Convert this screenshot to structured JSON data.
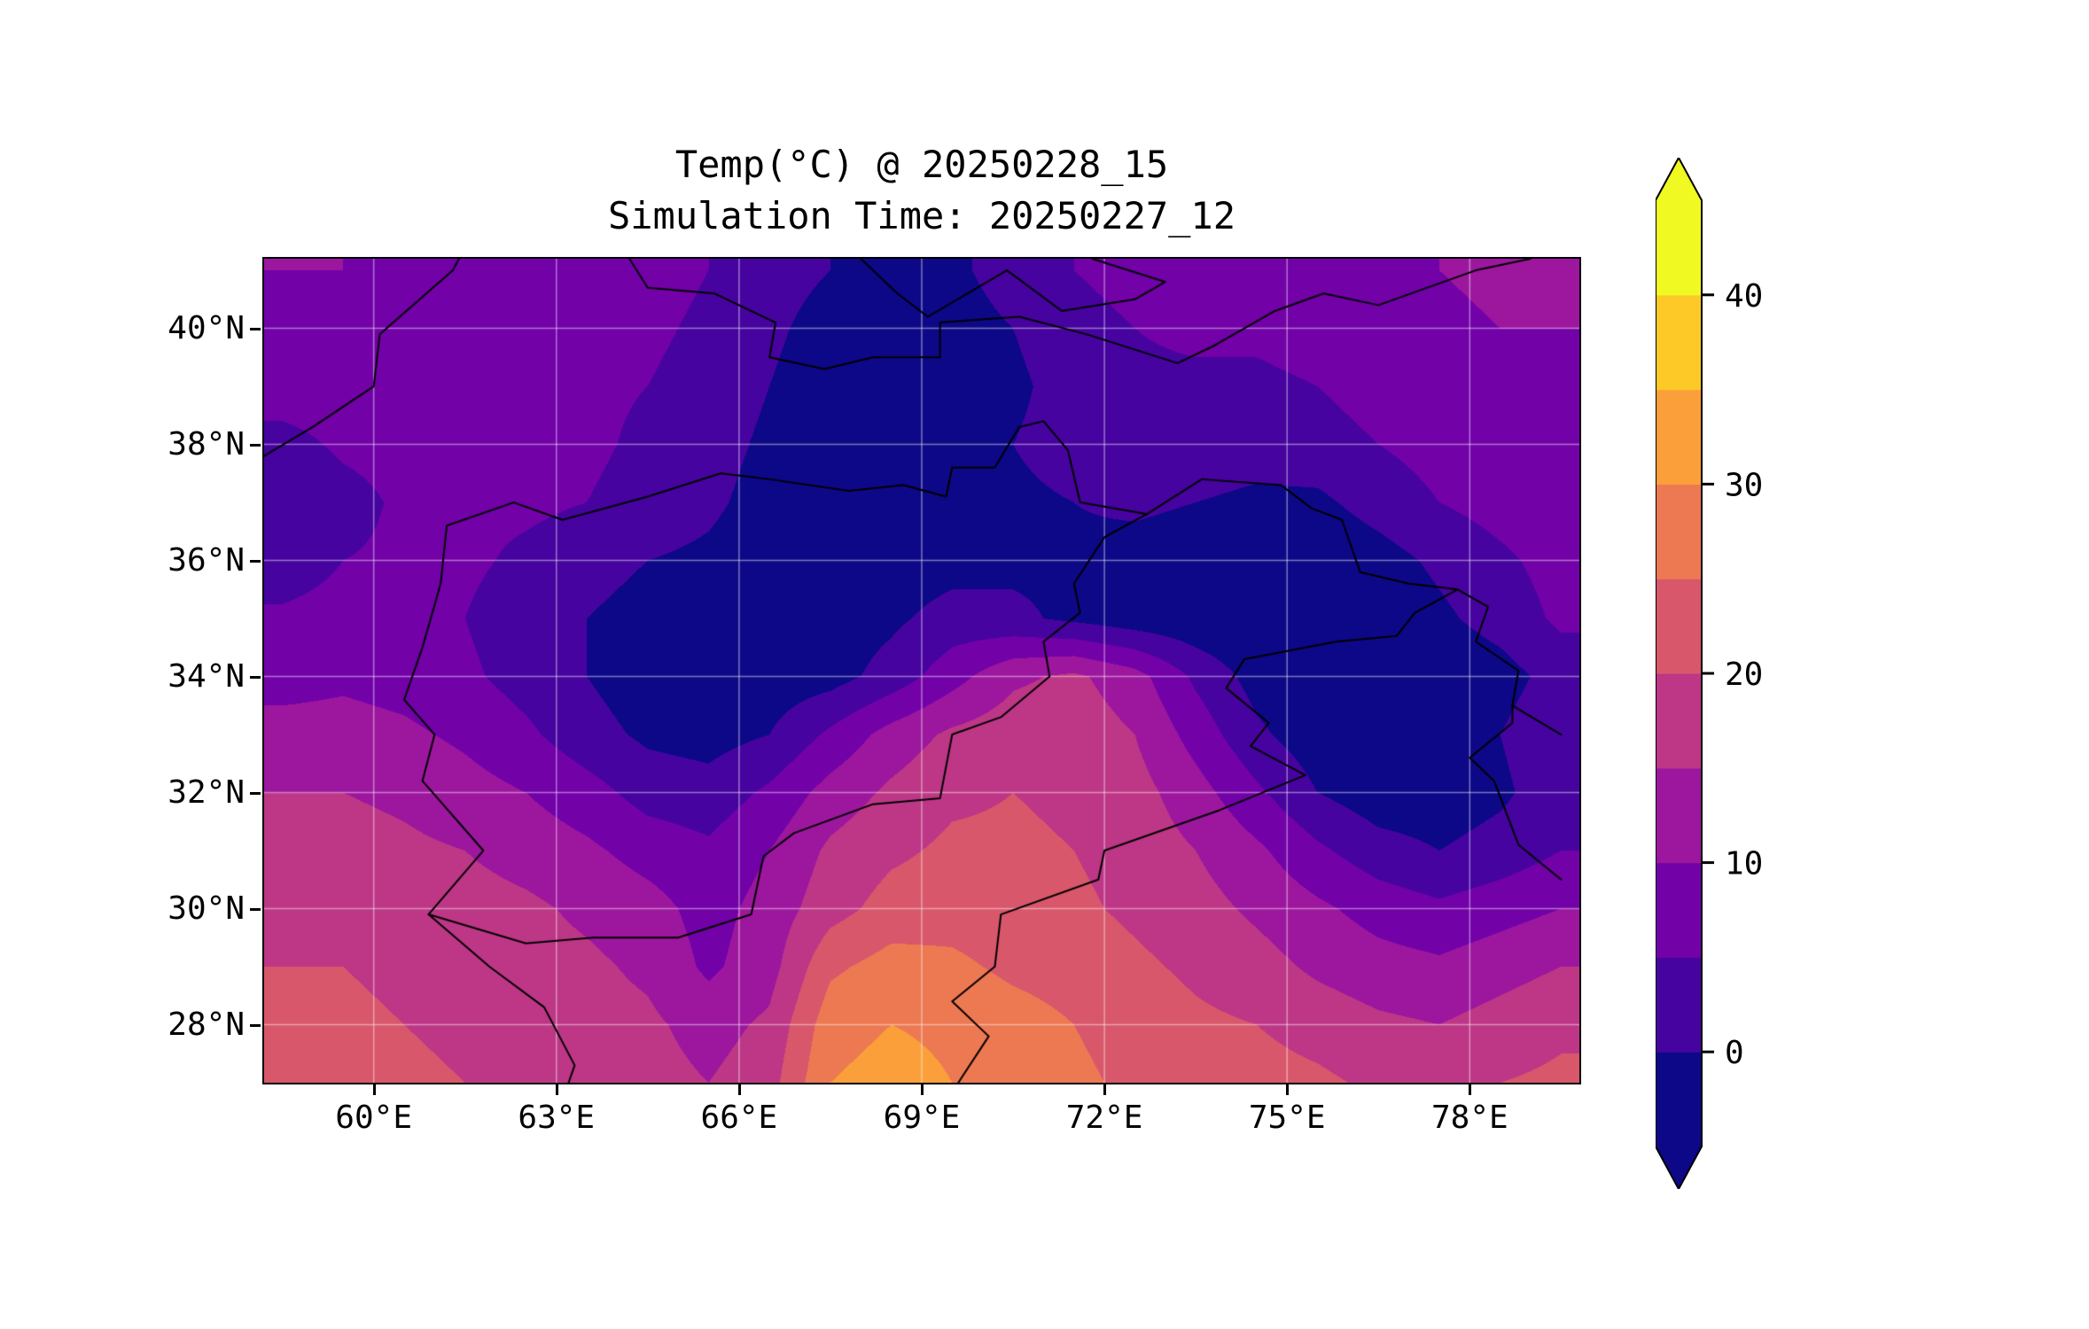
{
  "figure": {
    "background": "#ffffff"
  },
  "chart_data": {
    "type": "heatmap",
    "title": "Temp(°C) @ 20250228_15",
    "subtitle": "Simulation Time: 20250227_12",
    "xlabel": "",
    "ylabel": "",
    "lon_range": [
      58.2,
      79.8
    ],
    "lat_range": [
      27.0,
      41.2
    ],
    "x_ticks": [
      "60°E",
      "63°E",
      "66°E",
      "69°E",
      "72°E",
      "75°E",
      "78°E"
    ],
    "x_tick_values": [
      60,
      63,
      66,
      69,
      72,
      75,
      78
    ],
    "y_ticks": [
      "40°N",
      "38°N",
      "36°N",
      "34°N",
      "32°N",
      "30°N",
      "28°N"
    ],
    "y_tick_values": [
      40,
      38,
      36,
      34,
      32,
      30,
      28
    ],
    "grid_lines": {
      "color": "#ffffff",
      "alpha": 0.45,
      "width": 1.5
    },
    "border_style": {
      "color": "#000000",
      "width": 2
    },
    "colorbar": {
      "ticks": [
        40,
        30,
        20,
        10,
        0
      ],
      "tick_labels": [
        "40",
        "30",
        "20",
        "10",
        "0"
      ],
      "level_min": -5,
      "level_max": 45,
      "level_step": 5,
      "colors": [
        "#0d0887",
        "#46039f",
        "#7201a8",
        "#9c179e",
        "#bd3786",
        "#d8576b",
        "#ed7953",
        "#fb9f3a",
        "#fdc926",
        "#f0f921"
      ],
      "under_color": "#0d0887",
      "over_color": "#f0f921"
    },
    "grid": {
      "lons": [
        58.5,
        59.5,
        60.5,
        61.5,
        62.5,
        63.5,
        64.5,
        65.5,
        66.5,
        67.5,
        68.5,
        69.5,
        70.5,
        71.5,
        72.5,
        73.5,
        74.5,
        75.5,
        76.5,
        77.5,
        78.5,
        79.5
      ],
      "lats": [
        41,
        40,
        39,
        38,
        37,
        36,
        35,
        34,
        33,
        32,
        31,
        30,
        29,
        28,
        27
      ],
      "values": [
        [
          10,
          10,
          9,
          9,
          9,
          8,
          7,
          5,
          2,
          0,
          -2,
          -1,
          2,
          5,
          7,
          8,
          8,
          8,
          9,
          10,
          11,
          11
        ],
        [
          9,
          9,
          9,
          8,
          8,
          7,
          6,
          4,
          1,
          -2,
          -3,
          -2,
          0,
          3,
          5,
          6,
          6,
          7,
          8,
          9,
          10,
          10
        ],
        [
          8,
          8,
          8,
          7,
          7,
          6,
          5,
          3,
          0,
          -3,
          -4,
          -3,
          -1,
          2,
          4,
          4,
          4,
          5,
          7,
          8,
          9,
          9
        ],
        [
          3,
          6,
          7,
          7,
          6,
          6,
          4,
          2,
          -1,
          -3,
          -3,
          -2,
          0,
          2,
          3,
          3,
          2,
          3,
          5,
          7,
          8,
          9
        ],
        [
          0,
          3,
          6,
          6,
          6,
          5,
          3,
          1,
          -2,
          -4,
          -4,
          -3,
          -1,
          0,
          1,
          0,
          -1,
          -1,
          2,
          5,
          7,
          8
        ],
        [
          2,
          5,
          6,
          6,
          4,
          2,
          0,
          -1,
          -3,
          -4,
          -3,
          -2,
          -1,
          -1,
          -2,
          -3,
          -4,
          -4,
          -2,
          1,
          4,
          7
        ],
        [
          6,
          7,
          7,
          5,
          2,
          0,
          -2,
          -3,
          -4,
          -3,
          -1,
          2,
          1,
          -1,
          -3,
          -4,
          -5,
          -5,
          -4,
          -1,
          2,
          6
        ],
        [
          8,
          9,
          8,
          6,
          3,
          0,
          -3,
          -4,
          -3,
          -2,
          2,
          8,
          14,
          16,
          12,
          4,
          -2,
          -4,
          -5,
          -4,
          -2,
          2
        ],
        [
          12,
          12,
          11,
          9,
          6,
          2,
          -1,
          -2,
          0,
          6,
          12,
          16,
          18,
          18,
          15,
          8,
          1,
          -3,
          -4,
          -3,
          0,
          4
        ],
        [
          15,
          15,
          14,
          12,
          10,
          7,
          3,
          2,
          6,
          12,
          16,
          19,
          20,
          19,
          17,
          12,
          6,
          0,
          -3,
          -3,
          -1,
          3
        ],
        [
          17,
          17,
          16,
          15,
          13,
          11,
          8,
          6,
          10,
          16,
          19,
          21,
          21,
          20,
          18,
          15,
          11,
          6,
          2,
          0,
          2,
          5
        ],
        [
          19,
          18,
          18,
          17,
          16,
          14,
          12,
          8,
          12,
          18,
          22,
          23,
          22,
          21,
          19,
          17,
          14,
          11,
          8,
          6,
          8,
          10
        ],
        [
          20,
          20,
          19,
          18,
          17,
          16,
          14,
          9,
          13,
          24,
          27,
          26,
          24,
          23,
          21,
          19,
          17,
          14,
          12,
          11,
          13,
          15
        ],
        [
          21,
          21,
          20,
          19,
          18,
          17,
          16,
          13,
          16,
          28,
          30,
          29,
          27,
          25,
          23,
          21,
          20,
          18,
          16,
          15,
          17,
          19
        ],
        [
          22,
          22,
          21,
          20,
          19,
          18,
          17,
          15,
          18,
          30,
          32,
          30,
          28,
          26,
          24,
          23,
          22,
          21,
          19,
          18,
          20,
          21
        ]
      ]
    },
    "borders": [
      [
        [
          61.1,
          35.6
        ],
        [
          60.8,
          34.5
        ],
        [
          60.5,
          33.6
        ],
        [
          61.0,
          33.0
        ],
        [
          60.8,
          32.2
        ],
        [
          61.8,
          31.0
        ],
        [
          60.9,
          29.9
        ],
        [
          61.9,
          29.0
        ],
        [
          62.8,
          28.3
        ],
        [
          63.3,
          27.3
        ],
        [
          63.2,
          27.0
        ]
      ],
      [
        [
          61.1,
          35.6
        ],
        [
          61.2,
          36.6
        ],
        [
          62.3,
          37.0
        ],
        [
          63.1,
          36.7
        ],
        [
          64.5,
          37.1
        ],
        [
          65.7,
          37.5
        ],
        [
          66.5,
          37.4
        ],
        [
          67.8,
          37.2
        ],
        [
          68.7,
          37.3
        ],
        [
          69.4,
          37.1
        ],
        [
          69.5,
          37.6
        ],
        [
          70.2,
          37.6
        ],
        [
          70.6,
          38.3
        ],
        [
          71.0,
          38.4
        ],
        [
          71.4,
          37.9
        ],
        [
          71.6,
          37.0
        ],
        [
          72.7,
          36.8
        ],
        [
          73.6,
          37.4
        ],
        [
          74.9,
          37.3
        ]
      ],
      [
        [
          60.9,
          29.9
        ],
        [
          62.5,
          29.4
        ],
        [
          63.6,
          29.5
        ],
        [
          65.0,
          29.5
        ],
        [
          66.2,
          29.9
        ],
        [
          66.4,
          30.9
        ],
        [
          66.9,
          31.3
        ],
        [
          68.2,
          31.8
        ],
        [
          69.3,
          31.9
        ],
        [
          69.5,
          33.0
        ],
        [
          70.3,
          33.3
        ],
        [
          71.1,
          34.0
        ],
        [
          71.0,
          34.6
        ],
        [
          71.6,
          35.1
        ],
        [
          71.5,
          35.6
        ],
        [
          72.0,
          36.4
        ],
        [
          72.7,
          36.8
        ]
      ],
      [
        [
          69.6,
          27.0
        ],
        [
          70.1,
          27.8
        ],
        [
          69.5,
          28.4
        ],
        [
          70.2,
          29.0
        ],
        [
          70.3,
          29.9
        ],
        [
          71.9,
          30.5
        ],
        [
          72.0,
          31.0
        ],
        [
          73.9,
          31.7
        ],
        [
          75.3,
          32.3
        ],
        [
          74.4,
          32.8
        ],
        [
          74.7,
          33.2
        ],
        [
          74.0,
          33.8
        ],
        [
          74.3,
          34.3
        ],
        [
          75.8,
          34.6
        ],
        [
          76.8,
          34.7
        ],
        [
          77.1,
          35.1
        ],
        [
          77.8,
          35.5
        ]
      ],
      [
        [
          74.9,
          37.3
        ],
        [
          75.4,
          36.9
        ],
        [
          75.9,
          36.7
        ],
        [
          76.2,
          35.8
        ],
        [
          77.0,
          35.6
        ],
        [
          77.8,
          35.5
        ],
        [
          78.3,
          35.2
        ],
        [
          78.1,
          34.6
        ],
        [
          78.8,
          34.1
        ],
        [
          78.7,
          33.5
        ],
        [
          79.5,
          33.0
        ]
      ],
      [
        [
          64.2,
          41.2
        ],
        [
          64.5,
          40.7
        ],
        [
          65.6,
          40.6
        ],
        [
          66.6,
          40.1
        ],
        [
          66.5,
          39.5
        ],
        [
          67.4,
          39.3
        ],
        [
          68.2,
          39.5
        ],
        [
          69.3,
          39.5
        ],
        [
          69.3,
          40.1
        ],
        [
          70.6,
          40.2
        ],
        [
          71.7,
          39.9
        ],
        [
          73.2,
          39.4
        ],
        [
          73.8,
          39.7
        ],
        [
          74.8,
          40.3
        ],
        [
          75.6,
          40.6
        ],
        [
          76.5,
          40.4
        ],
        [
          78.1,
          41.0
        ],
        [
          79.0,
          41.2
        ]
      ],
      [
        [
          68.0,
          41.2
        ],
        [
          68.6,
          40.6
        ],
        [
          69.1,
          40.2
        ],
        [
          70.4,
          41.0
        ],
        [
          71.3,
          40.3
        ],
        [
          72.5,
          40.5
        ],
        [
          73.0,
          40.8
        ],
        [
          71.8,
          41.2
        ]
      ],
      [
        [
          58.2,
          37.8
        ],
        [
          59.0,
          38.3
        ],
        [
          60.0,
          39.0
        ],
        [
          60.1,
          39.9
        ],
        [
          61.3,
          41.0
        ],
        [
          61.4,
          41.2
        ]
      ],
      [
        [
          79.5,
          30.5
        ],
        [
          78.8,
          31.1
        ],
        [
          78.4,
          32.2
        ],
        [
          78.0,
          32.6
        ],
        [
          78.7,
          33.2
        ],
        [
          78.7,
          33.5
        ]
      ]
    ]
  }
}
